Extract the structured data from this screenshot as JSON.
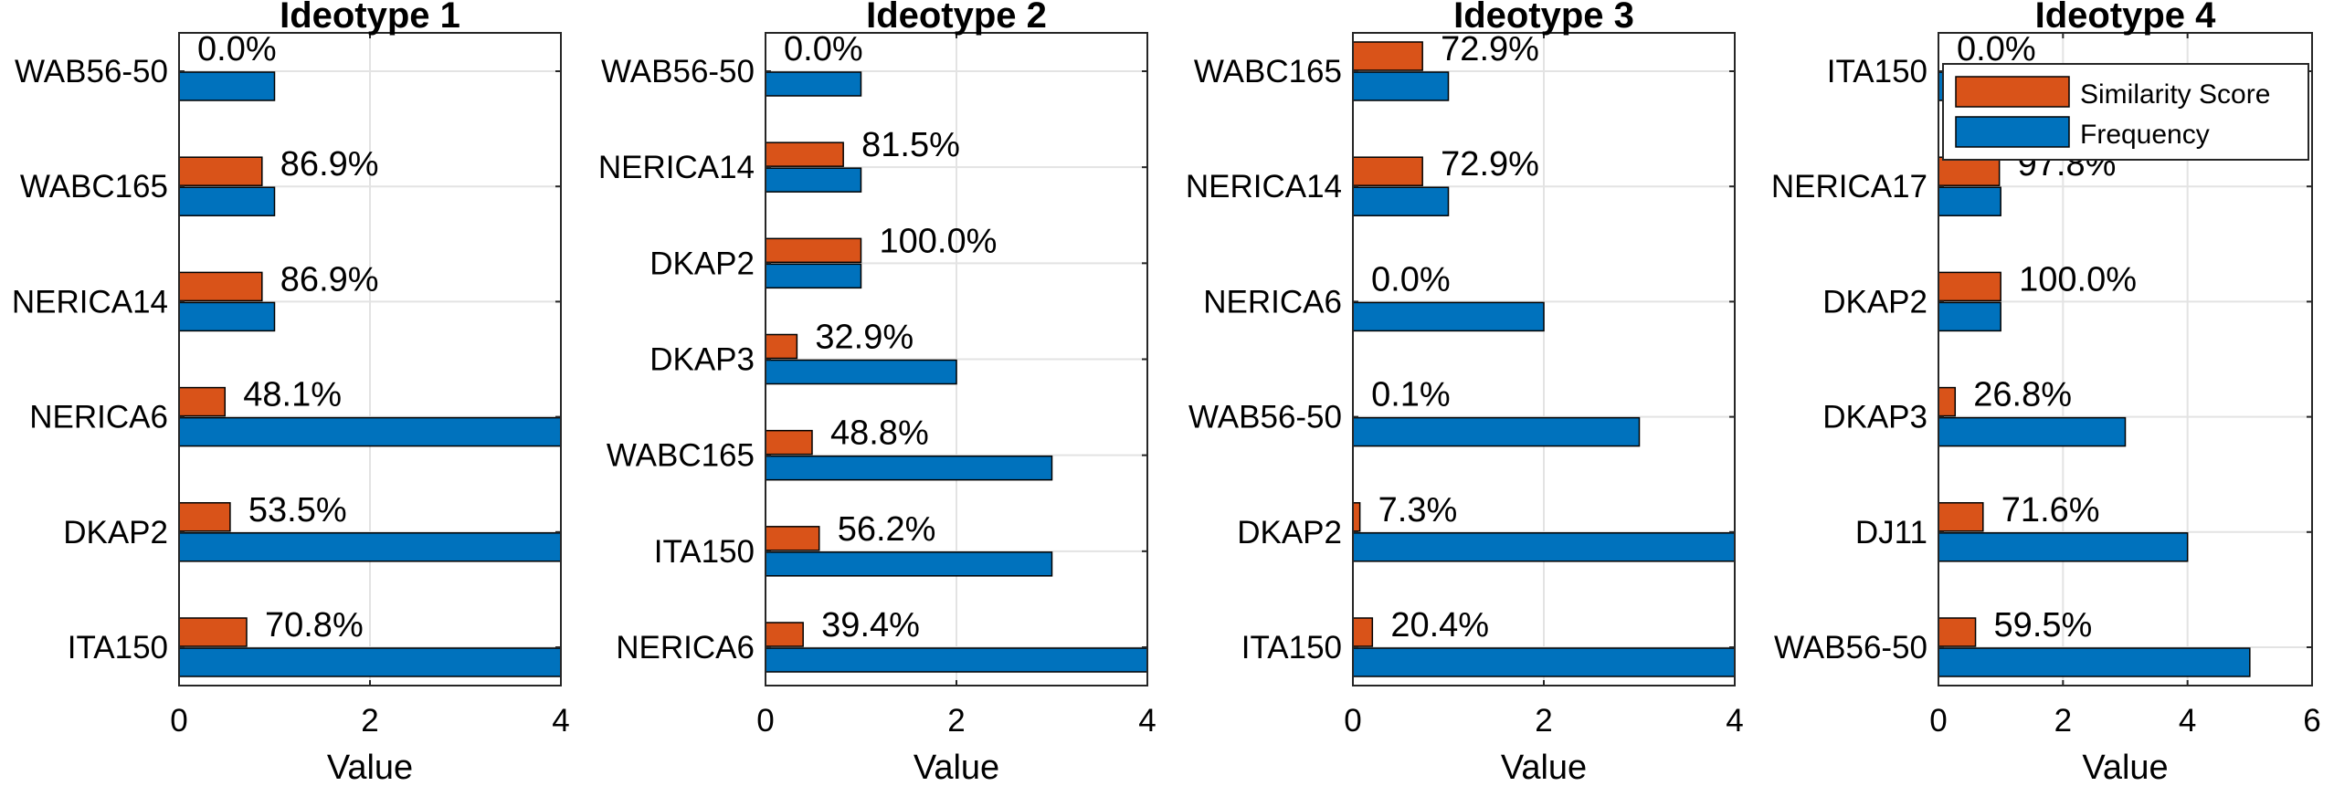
{
  "colors": {
    "similarity": "#D95319",
    "frequency": "#0072BD",
    "grid": "#E3E3E3",
    "axis": "#262626"
  },
  "legend": {
    "similarity_label": "Similarity Score",
    "frequency_label": "Frequency",
    "placement": "top-right"
  },
  "chart_data": [
    {
      "type": "bar",
      "orientation": "horizontal",
      "title": "Ideotype 1",
      "xlabel": "Value",
      "xlim": [
        0,
        4
      ],
      "xticks": [
        "0",
        "2",
        "4"
      ],
      "categories": [
        "WAB56-50",
        "WABC165",
        "NERICA14",
        "NERICA6",
        "DKAP2",
        "ITA150"
      ],
      "series": [
        {
          "name": "Similarity Score",
          "values": [
            0.0,
            0.869,
            0.869,
            0.481,
            0.535,
            0.708
          ]
        },
        {
          "name": "Frequency",
          "values": [
            1,
            1,
            1,
            4,
            4,
            4
          ]
        }
      ],
      "labels": [
        "0.0%",
        "86.9%",
        "86.9%",
        "48.1%",
        "53.5%",
        "70.8%"
      ]
    },
    {
      "type": "bar",
      "orientation": "horizontal",
      "title": "Ideotype 2",
      "xlabel": "Value",
      "xlim": [
        0,
        4
      ],
      "xticks": [
        "0",
        "2",
        "4"
      ],
      "categories": [
        "WAB56-50",
        "NERICA14",
        "DKAP2",
        "DKAP3",
        "WABC165",
        "ITA150",
        "NERICA6"
      ],
      "series": [
        {
          "name": "Similarity Score",
          "values": [
            0.0,
            0.815,
            1.0,
            0.329,
            0.488,
            0.562,
            0.394
          ]
        },
        {
          "name": "Frequency",
          "values": [
            1,
            1,
            1,
            2,
            3,
            3,
            4
          ]
        }
      ],
      "labels": [
        "0.0%",
        "81.5%",
        "100.0%",
        "32.9%",
        "48.8%",
        "56.2%",
        "39.4%"
      ]
    },
    {
      "type": "bar",
      "orientation": "horizontal",
      "title": "Ideotype 3",
      "xlabel": "Value",
      "xlim": [
        0,
        4
      ],
      "xticks": [
        "0",
        "2",
        "4"
      ],
      "categories": [
        "WABC165",
        "NERICA14",
        "NERICA6",
        "WAB56-50",
        "DKAP2",
        "ITA150"
      ],
      "series": [
        {
          "name": "Similarity Score",
          "values": [
            0.729,
            0.729,
            0.0,
            0.001,
            0.073,
            0.204
          ]
        },
        {
          "name": "Frequency",
          "values": [
            1,
            1,
            2,
            3,
            4,
            4
          ]
        }
      ],
      "labels": [
        "72.9%",
        "72.9%",
        "0.0%",
        "0.1%",
        "7.3%",
        "20.4%"
      ]
    },
    {
      "type": "bar",
      "orientation": "horizontal",
      "title": "Ideotype 4",
      "xlabel": "Value",
      "xlim": [
        0,
        6
      ],
      "xticks": [
        "0",
        "2",
        "4",
        "6"
      ],
      "categories": [
        "ITA150",
        "NERICA17",
        "DKAP2",
        "DKAP3",
        "DJ11",
        "WAB56-50"
      ],
      "series": [
        {
          "name": "Similarity Score",
          "values": [
            0.0,
            0.978,
            1.0,
            0.268,
            0.716,
            0.595
          ]
        },
        {
          "name": "Frequency",
          "values": [
            1,
            1,
            1,
            3,
            4,
            5
          ]
        }
      ],
      "labels": [
        "0.0%",
        "97.8%",
        "100.0%",
        "26.8%",
        "71.6%",
        "59.5%"
      ],
      "show_legend": true
    }
  ]
}
